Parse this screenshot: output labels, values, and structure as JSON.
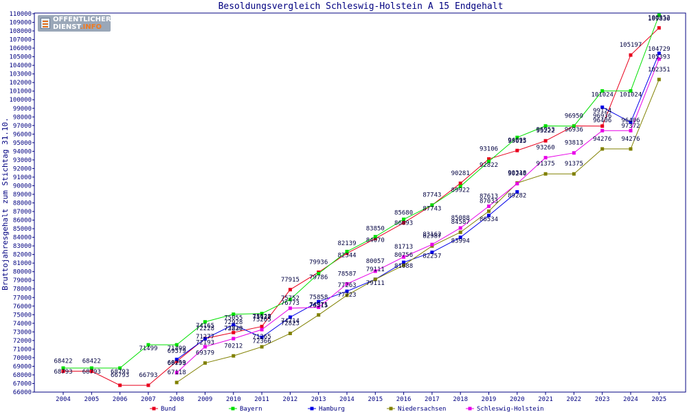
{
  "logo": {
    "line1": "OFFENTLICHER",
    "line2a": "DIENST",
    "line2b": ".INFO"
  },
  "chart_data": {
    "type": "line",
    "title": "Besoldungsvergleich Schleswig-Holstein A 15 Endgehalt",
    "xlabel": "",
    "ylabel": "Bruttojahresgehalt zum Stichtag 31.10.",
    "ylim": [
      66000,
      110000
    ],
    "ystep": 1000,
    "grid": false,
    "legend": "bottom",
    "x": [
      "2004",
      "2005",
      "2006",
      "2007",
      "2008",
      "2009",
      "2010",
      "2011",
      "2012",
      "2013",
      "2014",
      "2015",
      "2016",
      "2017",
      "2018",
      "2019",
      "2020",
      "2021",
      "2022",
      "2023",
      "2024",
      "2025"
    ],
    "series": [
      {
        "name": "Bund",
        "color": "#e8001c",
        "values": [
          68422,
          68422,
          66793,
          66793,
          69579,
          72228,
          72928,
          73628,
          77915,
          79936,
          82139,
          83850,
          85680,
          87743,
          90281,
          93106,
          94093,
          95222,
          96950,
          96936,
          105197,
          108352
        ]
      },
      {
        "name": "Bayern",
        "color": "#00e000",
        "values": [
          68793,
          68793,
          68793,
          71499,
          71499,
          74165,
          75055,
          75132,
          76773,
          79786,
          82344,
          84070,
          86093,
          87743,
          89922,
          92822,
          95615,
          96953,
          96936,
          101024,
          101024,
          109830
        ]
      },
      {
        "name": "Hamburg",
        "color": "#0000e8",
        "values": [
          null,
          null,
          null,
          null,
          69799,
          72193,
          73838,
          72366,
          74714,
          76515,
          77723,
          79111,
          81088,
          82257,
          83994,
          86534,
          89282,
          null,
          null,
          99124,
          97372,
          105393
        ]
      },
      {
        "name": "Niedersachsen",
        "color": "#808000",
        "values": [
          null,
          null,
          null,
          null,
          67118,
          69379,
          70212,
          71265,
          72823,
          74971,
          77263,
          79111,
          80756,
          82987,
          84587,
          87033,
          90318,
          91375,
          91375,
          94276,
          94276,
          102351
        ]
      },
      {
        "name": "Schleswig-Holstein",
        "color": "#e800e8",
        "values": [
          null,
          null,
          null,
          null,
          68253,
          71277,
          72220,
          73265,
          75752,
          75858,
          78587,
          80057,
          81713,
          83162,
          85088,
          87613,
          90240,
          93260,
          93813,
          96406,
          96406,
          104729
        ]
      }
    ]
  }
}
